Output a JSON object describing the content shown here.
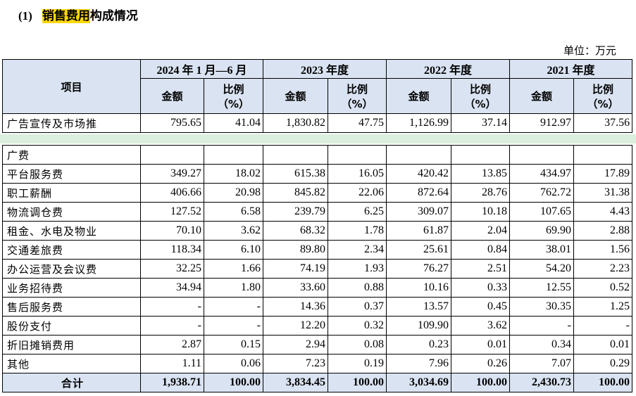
{
  "heading": {
    "number": "(1)",
    "highlight": "销售费用",
    "rest": "构成情况"
  },
  "unit_label": "单位：万元",
  "header": {
    "item": "项目",
    "periods": [
      "2024 年 1 月—6 月",
      "2023 年度",
      "2022 年度",
      "2021 年度"
    ],
    "amount": "金额",
    "ratio_line1": "比例",
    "ratio_line2": "（%）"
  },
  "first_row": {
    "label": "广告宣传及市场推",
    "values": [
      "795.65",
      "41.04",
      "1,830.82",
      "47.75",
      "1,126.99",
      "37.14",
      "912.97",
      "37.56"
    ]
  },
  "continued_label": "广费",
  "rows": [
    {
      "label": "平台服务费",
      "values": [
        "349.27",
        "18.02",
        "615.38",
        "16.05",
        "420.42",
        "13.85",
        "434.97",
        "17.89"
      ]
    },
    {
      "label": "职工薪酬",
      "values": [
        "406.66",
        "20.98",
        "845.82",
        "22.06",
        "872.64",
        "28.76",
        "762.72",
        "31.38"
      ]
    },
    {
      "label": "物流调仓费",
      "values": [
        "127.52",
        "6.58",
        "239.79",
        "6.25",
        "309.07",
        "10.18",
        "107.65",
        "4.43"
      ]
    },
    {
      "label": "租金、水电及物业",
      "values": [
        "70.10",
        "3.62",
        "68.32",
        "1.78",
        "61.87",
        "2.04",
        "69.90",
        "2.88"
      ]
    },
    {
      "label": "交通差旅费",
      "values": [
        "118.34",
        "6.10",
        "89.80",
        "2.34",
        "25.61",
        "0.84",
        "38.01",
        "1.56"
      ]
    },
    {
      "label": "办公运营及会议费",
      "values": [
        "32.25",
        "1.66",
        "74.19",
        "1.93",
        "76.27",
        "2.51",
        "54.20",
        "2.23"
      ]
    },
    {
      "label": "业务招待费",
      "values": [
        "34.94",
        "1.80",
        "33.60",
        "0.88",
        "10.16",
        "0.33",
        "12.55",
        "0.52"
      ]
    },
    {
      "label": "售后服务费",
      "values": [
        "-",
        "-",
        "14.36",
        "0.37",
        "13.57",
        "0.45",
        "30.35",
        "1.25"
      ]
    },
    {
      "label": "股份支付",
      "values": [
        "-",
        "-",
        "12.20",
        "0.32",
        "109.90",
        "3.62",
        "-",
        "-"
      ]
    },
    {
      "label": "折旧摊销费用",
      "values": [
        "2.87",
        "0.15",
        "2.94",
        "0.08",
        "0.23",
        "0.01",
        "0.34",
        "0.01"
      ]
    },
    {
      "label": "其他",
      "values": [
        "1.11",
        "0.06",
        "7.23",
        "0.19",
        "7.96",
        "0.26",
        "7.07",
        "0.29"
      ]
    }
  ],
  "total": {
    "label": "合计",
    "values": [
      "1,938.71",
      "100.00",
      "3,834.45",
      "100.00",
      "3,034.69",
      "100.00",
      "2,430.73",
      "100.00"
    ]
  }
}
